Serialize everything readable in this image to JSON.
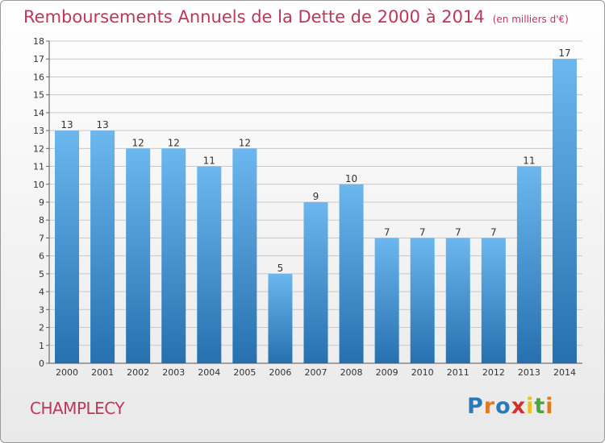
{
  "header": {
    "title": "Remboursements Annuels de la Dette de 2000 à 2014",
    "unit": "(en milliers d'€)"
  },
  "footer": {
    "place": "CHAMPLECY",
    "logo": "Proxiti",
    "logo_colors": [
      "#2a7ab8",
      "#e07a1f",
      "#2a7ab8",
      "#d2302c",
      "#e8c21a",
      "#4aa83a",
      "#e07a1f"
    ]
  },
  "colors": {
    "bar_light": "#6cb7ee",
    "bar_dark": "#2670b0",
    "grid": "#c9c9c9",
    "text": "#333333",
    "accent": "#c0355a"
  },
  "chart_data": {
    "type": "bar",
    "title": "Remboursements Annuels de la Dette de 2000 à 2014",
    "xlabel": "",
    "ylabel": "",
    "ylim": [
      0,
      18
    ],
    "yticks": [
      0,
      1,
      2,
      3,
      4,
      5,
      6,
      7,
      8,
      9,
      10,
      11,
      12,
      13,
      14,
      15,
      16,
      17,
      18
    ],
    "grid": true,
    "categories": [
      "2000",
      "2001",
      "2002",
      "2003",
      "2004",
      "2005",
      "2006",
      "2007",
      "2008",
      "2009",
      "2010",
      "2011",
      "2012",
      "2013",
      "2014"
    ],
    "values": [
      13,
      13,
      12,
      12,
      11,
      12,
      5,
      9,
      10,
      7,
      7,
      7,
      7,
      11,
      17
    ],
    "data_labels": [
      "13",
      "13",
      "12",
      "12",
      "11",
      "12",
      "5",
      "9",
      "10",
      "7",
      "7",
      "7",
      "7",
      "11",
      "17"
    ]
  }
}
